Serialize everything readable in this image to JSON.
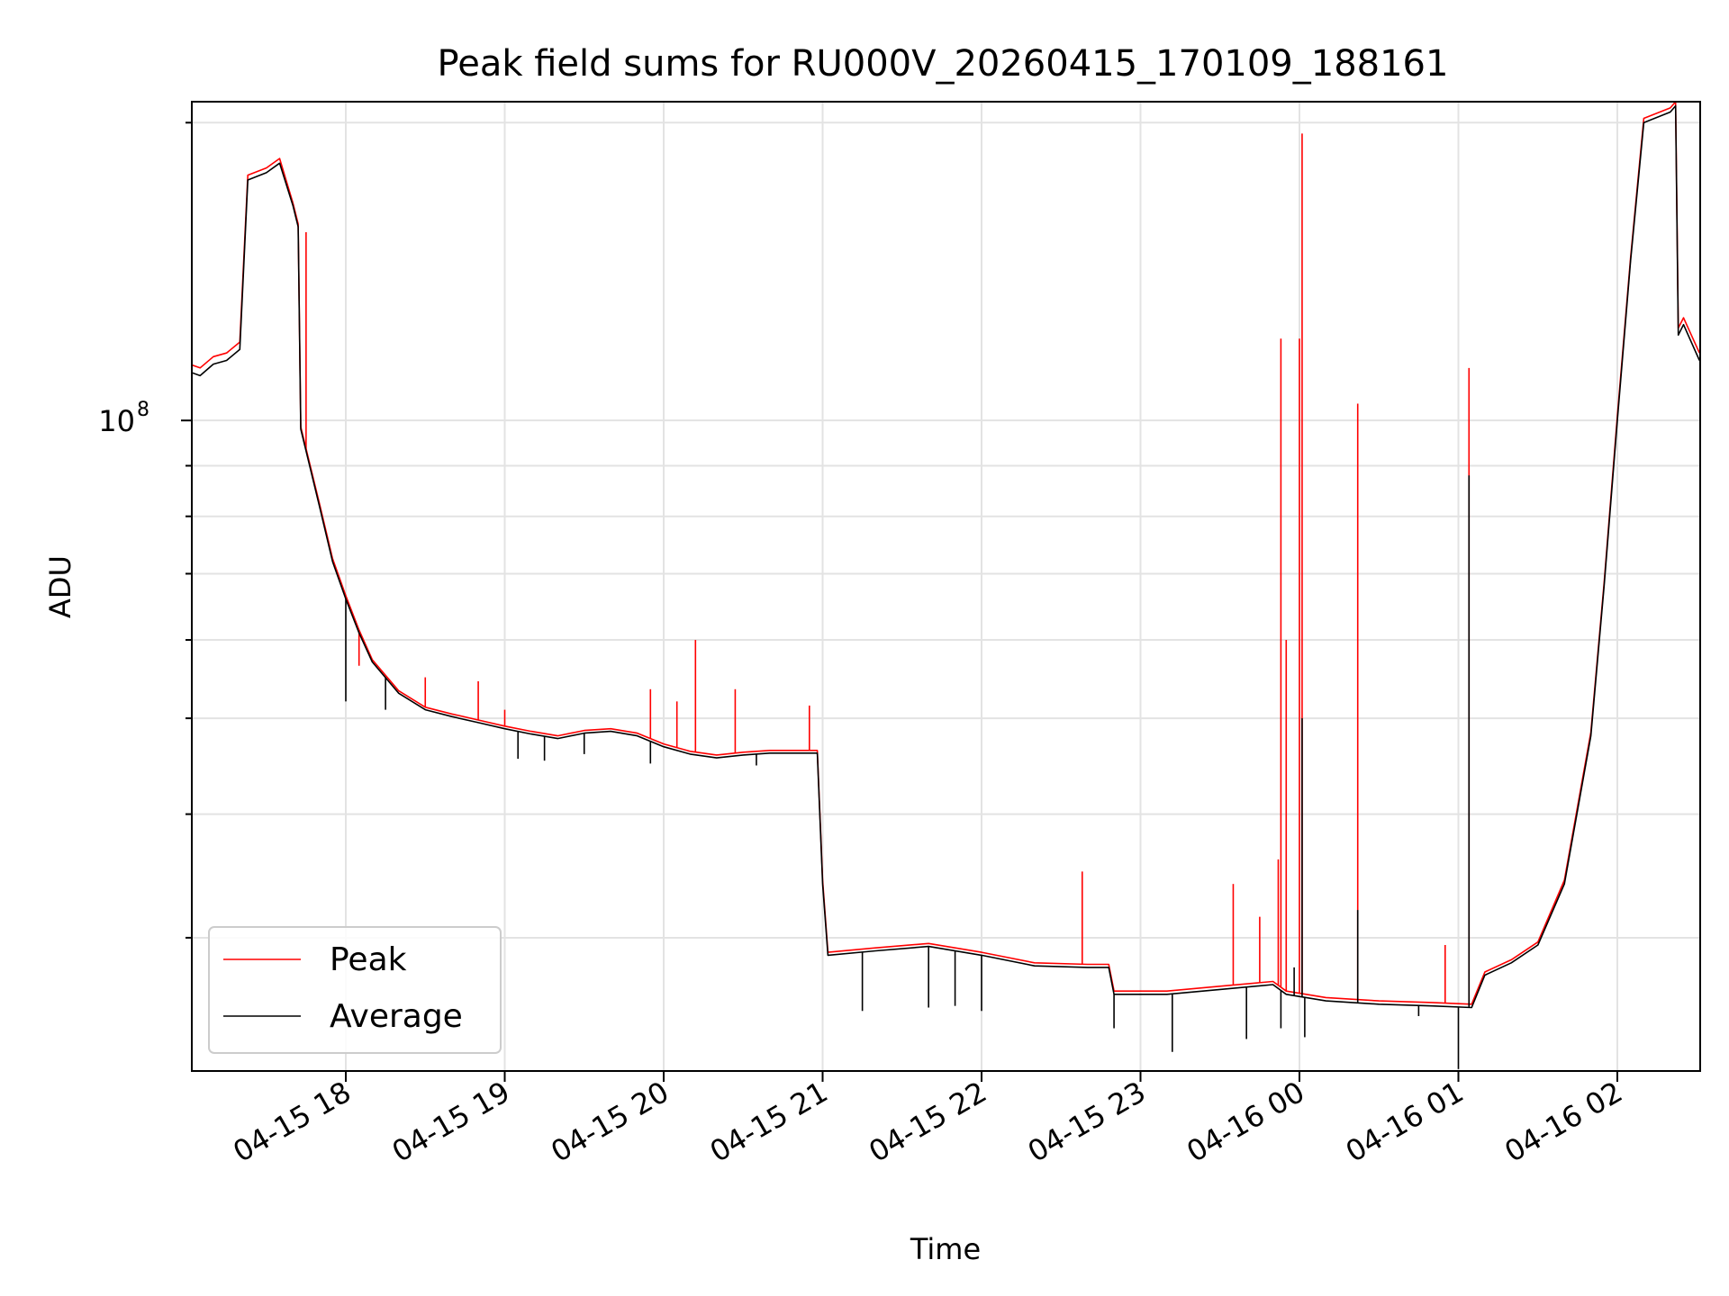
{
  "chart_data": {
    "type": "line",
    "title": "Peak field sums for RU000V_20260415_170109_188161",
    "xlabel": "Time",
    "ylabel": "ADU",
    "yscale": "log",
    "ylim": [
      22000000,
      210000000
    ],
    "xlim": [
      "04-15 17:01",
      "04-16 02:31"
    ],
    "x_ticks": [
      "04-15 18",
      "04-15 19",
      "04-15 20",
      "04-15 21",
      "04-15 22",
      "04-15 23",
      "04-16 00",
      "04-16 01",
      "04-16 02"
    ],
    "y_tick_label": {
      "base": "10",
      "exponent": "8"
    },
    "grid": true,
    "legend": {
      "position": "lower-left",
      "entries": [
        "Peak",
        "Average"
      ]
    },
    "colors": {
      "Peak": "#ff0000",
      "Average": "#000000"
    },
    "series": [
      {
        "name": "Average",
        "points": [
          [
            "04-15 17:01",
            112000000
          ],
          [
            "04-15 17:05",
            111000000
          ],
          [
            "04-15 17:10",
            114000000
          ],
          [
            "04-15 17:15",
            115000000
          ],
          [
            "04-15 17:20",
            118000000
          ],
          [
            "04-15 17:23",
            175000000
          ],
          [
            "04-15 17:30",
            178000000
          ],
          [
            "04-15 17:35",
            182000000
          ],
          [
            "04-15 17:40",
            165000000
          ],
          [
            "04-15 17:42",
            157000000
          ],
          [
            "04-15 17:43",
            98000000
          ],
          [
            "04-15 17:50",
            82000000
          ],
          [
            "04-15 17:55",
            72000000
          ],
          [
            "04-15 18:00",
            66000000
          ],
          [
            "04-15 18:05",
            61000000
          ],
          [
            "04-15 18:10",
            57000000
          ],
          [
            "04-15 18:20",
            53000000
          ],
          [
            "04-15 18:30",
            51000000
          ],
          [
            "04-15 18:40",
            50200000
          ],
          [
            "04-15 18:50",
            49500000
          ],
          [
            "04-15 19:00",
            48800000
          ],
          [
            "04-15 19:10",
            48200000
          ],
          [
            "04-15 19:20",
            47700000
          ],
          [
            "04-15 19:30",
            48300000
          ],
          [
            "04-15 19:40",
            48500000
          ],
          [
            "04-15 19:50",
            48000000
          ],
          [
            "04-15 20:00",
            46800000
          ],
          [
            "04-15 20:10",
            46000000
          ],
          [
            "04-15 20:20",
            45600000
          ],
          [
            "04-15 20:30",
            45900000
          ],
          [
            "04-15 20:40",
            46100000
          ],
          [
            "04-15 20:50",
            46100000
          ],
          [
            "04-15 20:58",
            46100000
          ],
          [
            "04-15 21:00",
            34000000
          ],
          [
            "04-15 21:02",
            28800000
          ],
          [
            "04-15 21:20",
            29100000
          ],
          [
            "04-15 21:40",
            29400000
          ],
          [
            "04-15 22:00",
            28800000
          ],
          [
            "04-15 22:20",
            28100000
          ],
          [
            "04-15 22:40",
            28000000
          ],
          [
            "04-15 22:48",
            28000000
          ],
          [
            "04-15 22:50",
            26300000
          ],
          [
            "04-15 23:10",
            26300000
          ],
          [
            "04-15 23:30",
            26600000
          ],
          [
            "04-15 23:50",
            26900000
          ],
          [
            "04-15 23:55",
            26300000
          ],
          [
            "04-16 00:10",
            25900000
          ],
          [
            "04-16 00:30",
            25700000
          ],
          [
            "04-16 00:50",
            25600000
          ],
          [
            "04-16 01:05",
            25500000
          ],
          [
            "04-16 01:10",
            27500000
          ],
          [
            "04-16 01:20",
            28300000
          ],
          [
            "04-16 01:30",
            29500000
          ],
          [
            "04-16 01:40",
            34000000
          ],
          [
            "04-16 01:50",
            48000000
          ],
          [
            "04-16 01:55",
            68000000
          ],
          [
            "04-16 02:00",
            100000000
          ],
          [
            "04-16 02:05",
            145000000
          ],
          [
            "04-16 02:10",
            200000000
          ],
          [
            "04-16 02:20",
            205000000
          ],
          [
            "04-16 02:22",
            208000000
          ],
          [
            "04-16 02:23",
            122000000
          ],
          [
            "04-16 02:25",
            125000000
          ],
          [
            "04-16 02:31",
            115000000
          ]
        ],
        "spikes": [
          [
            "04-15 18:00",
            52000000
          ],
          [
            "04-15 18:15",
            51000000
          ],
          [
            "04-15 19:05",
            45500000
          ],
          [
            "04-15 19:15",
            45300000
          ],
          [
            "04-15 19:30",
            46000000
          ],
          [
            "04-15 19:55",
            45000000
          ],
          [
            "04-15 20:35",
            44800000
          ],
          [
            "04-15 21:15",
            25300000
          ],
          [
            "04-15 21:40",
            25500000
          ],
          [
            "04-15 21:50",
            25600000
          ],
          [
            "04-15 22:00",
            25300000
          ],
          [
            "04-15 22:50",
            24300000
          ],
          [
            "04-15 23:12",
            23000000
          ],
          [
            "04-15 23:40",
            23700000
          ],
          [
            "04-15 23:53",
            24300000
          ],
          [
            "04-15 23:58",
            28000000
          ],
          [
            "04-16 00:01",
            50000000
          ],
          [
            "04-16 00:02",
            23800000
          ],
          [
            "04-16 00:22",
            32000000
          ],
          [
            "04-16 00:45",
            25000000
          ],
          [
            "04-16 01:00",
            22100000
          ],
          [
            "04-16 01:04",
            88000000
          ]
        ]
      },
      {
        "name": "Peak",
        "points": [
          [
            "04-15 17:01",
            114000000
          ],
          [
            "04-15 17:05",
            113000000
          ],
          [
            "04-15 17:10",
            116000000
          ],
          [
            "04-15 17:15",
            117000000
          ],
          [
            "04-15 17:20",
            120000000
          ],
          [
            "04-15 17:23",
            177000000
          ],
          [
            "04-15 17:30",
            180000000
          ],
          [
            "04-15 17:35",
            184000000
          ],
          [
            "04-15 17:40",
            166000000
          ],
          [
            "04-15 17:42",
            158000000
          ],
          [
            "04-15 17:43",
            98500000
          ],
          [
            "04-15 17:50",
            82500000
          ],
          [
            "04-15 17:55",
            72500000
          ],
          [
            "04-15 18:00",
            66500000
          ],
          [
            "04-15 18:05",
            61400000
          ],
          [
            "04-15 18:10",
            57300000
          ],
          [
            "04-15 18:20",
            53300000
          ],
          [
            "04-15 18:30",
            51300000
          ],
          [
            "04-15 18:40",
            50500000
          ],
          [
            "04-15 18:50",
            49800000
          ],
          [
            "04-15 19:00",
            49100000
          ],
          [
            "04-15 19:10",
            48500000
          ],
          [
            "04-15 19:20",
            48000000
          ],
          [
            "04-15 19:30",
            48600000
          ],
          [
            "04-15 19:40",
            48800000
          ],
          [
            "04-15 19:50",
            48300000
          ],
          [
            "04-15 20:00",
            47100000
          ],
          [
            "04-15 20:10",
            46300000
          ],
          [
            "04-15 20:20",
            45900000
          ],
          [
            "04-15 20:30",
            46200000
          ],
          [
            "04-15 20:40",
            46400000
          ],
          [
            "04-15 20:50",
            46400000
          ],
          [
            "04-15 20:58",
            46400000
          ],
          [
            "04-15 21:00",
            34300000
          ],
          [
            "04-15 21:02",
            29000000
          ],
          [
            "04-15 21:20",
            29300000
          ],
          [
            "04-15 21:40",
            29600000
          ],
          [
            "04-15 22:00",
            29000000
          ],
          [
            "04-15 22:20",
            28300000
          ],
          [
            "04-15 22:40",
            28200000
          ],
          [
            "04-15 22:48",
            28200000
          ],
          [
            "04-15 22:50",
            26500000
          ],
          [
            "04-15 23:10",
            26500000
          ],
          [
            "04-15 23:30",
            26800000
          ],
          [
            "04-15 23:50",
            27100000
          ],
          [
            "04-15 23:55",
            26500000
          ],
          [
            "04-16 00:10",
            26100000
          ],
          [
            "04-16 00:30",
            25900000
          ],
          [
            "04-16 00:50",
            25800000
          ],
          [
            "04-16 01:05",
            25700000
          ],
          [
            "04-16 01:10",
            27700000
          ],
          [
            "04-16 01:20",
            28500000
          ],
          [
            "04-16 01:30",
            29700000
          ],
          [
            "04-16 01:40",
            34300000
          ],
          [
            "04-16 01:50",
            48400000
          ],
          [
            "04-16 01:55",
            68500000
          ],
          [
            "04-16 02:00",
            101000000
          ],
          [
            "04-16 02:05",
            146000000
          ],
          [
            "04-16 02:10",
            202000000
          ],
          [
            "04-16 02:20",
            207000000
          ],
          [
            "04-16 02:22",
            210000000
          ],
          [
            "04-16 02:23",
            124000000
          ],
          [
            "04-16 02:25",
            127000000
          ],
          [
            "04-16 02:31",
            117000000
          ]
        ],
        "spikes": [
          [
            "04-15 17:45",
            155000000
          ],
          [
            "04-15 18:05",
            56500000
          ],
          [
            "04-15 18:30",
            55000000
          ],
          [
            "04-15 18:50",
            54500000
          ],
          [
            "04-15 19:00",
            51000000
          ],
          [
            "04-15 19:55",
            53500000
          ],
          [
            "04-15 20:05",
            52000000
          ],
          [
            "04-15 20:12",
            60000000
          ],
          [
            "04-15 20:27",
            53500000
          ],
          [
            "04-15 20:55",
            51500000
          ],
          [
            "04-15 22:38",
            35000000
          ],
          [
            "04-15 23:35",
            34000000
          ],
          [
            "04-15 23:45",
            31500000
          ],
          [
            "04-15 23:52",
            36000000
          ],
          [
            "04-15 23:53",
            121000000
          ],
          [
            "04-15 23:55",
            60000000
          ],
          [
            "04-16 00:00",
            121000000
          ],
          [
            "04-16 00:01",
            195000000
          ],
          [
            "04-16 00:22",
            104000000
          ],
          [
            "04-16 00:55",
            29500000
          ],
          [
            "04-16 01:04",
            113000000
          ]
        ]
      }
    ]
  }
}
